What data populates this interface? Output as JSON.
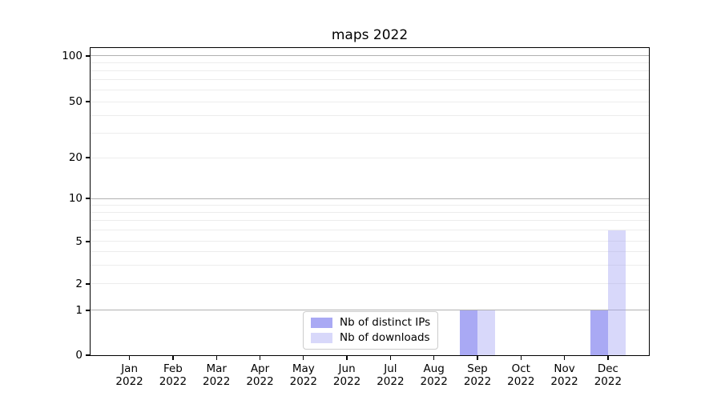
{
  "chart_data": {
    "type": "bar",
    "title": "maps 2022",
    "categories": [
      "Jan 2022",
      "Feb 2022",
      "Mar 2022",
      "Apr 2022",
      "May 2022",
      "Jun 2022",
      "Jul 2022",
      "Aug 2022",
      "Sep 2022",
      "Oct 2022",
      "Nov 2022",
      "Dec 2022"
    ],
    "series": [
      {
        "name": "Nb of distinct IPs",
        "color": "#a9a9f4",
        "opacity": 1,
        "values": [
          0,
          0,
          0,
          0,
          0,
          0,
          0,
          0,
          1,
          0,
          0,
          1
        ]
      },
      {
        "name": "Nb of downloads",
        "color": "#a9a9f4",
        "opacity": 0.45,
        "values": [
          0,
          0,
          0,
          0,
          0,
          0,
          0,
          0,
          1,
          0,
          0,
          6
        ]
      }
    ],
    "xlabel": "",
    "ylabel": "",
    "yscale": "symlog",
    "ylim": [
      0,
      115
    ],
    "yticks": [
      0,
      1,
      2,
      5,
      10,
      20,
      50,
      100
    ],
    "grid": "horizontal",
    "grid_major_color": "#b0b0b0",
    "grid_minor_color": "#ececec",
    "legend_position": "lower-center-left"
  }
}
